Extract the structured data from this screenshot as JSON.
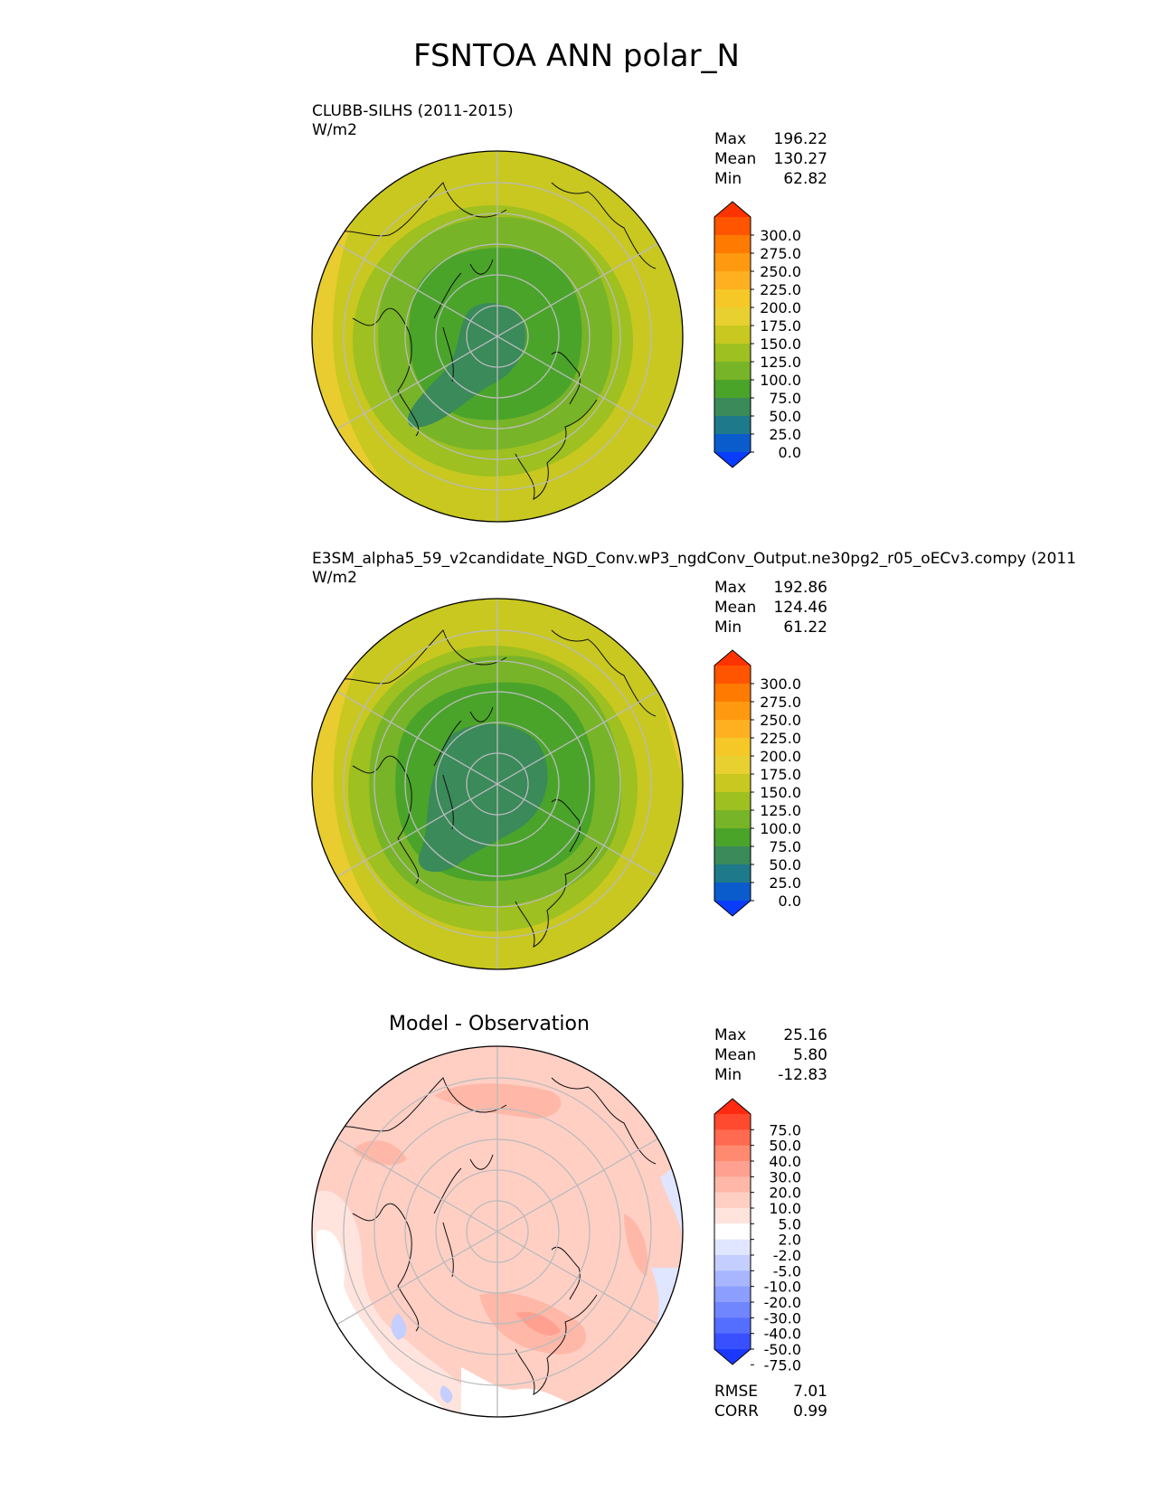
{
  "figure": {
    "title": "FSNTOA ANN polar_N"
  },
  "panels": [
    {
      "id": "test",
      "label": "CLUBB-SILHS (2011-2015)",
      "units": "W/m2",
      "stats": [
        {
          "label": "Max",
          "value": "196.22"
        },
        {
          "label": "Mean",
          "value": "130.27"
        },
        {
          "label": "Min",
          "value": "62.82"
        }
      ],
      "colorbar": {
        "ticks": [
          "300.0",
          "275.0",
          "250.0",
          "225.0",
          "200.0",
          "175.0",
          "150.0",
          "125.0",
          "100.0",
          "75.0",
          "50.0",
          "25.0",
          "0.0"
        ],
        "colors": [
          "#ff3300",
          "#ff5500",
          "#ff7a00",
          "#ff9a10",
          "#ffb020",
          "#f5c828",
          "#e8d030",
          "#c8c820",
          "#9ec020",
          "#78b428",
          "#4aa42a",
          "#3a8a5a",
          "#1e7a8a",
          "#0a5ccc",
          "#0a3cff"
        ]
      }
    },
    {
      "id": "ref",
      "label": "E3SM_alpha5_59_v2candidate_NGD_Conv.wP3_ngdConv_Output.ne30pg2_r05_oECv3.compy (2011",
      "units": "W/m2",
      "stats": [
        {
          "label": "Max",
          "value": "192.86"
        },
        {
          "label": "Mean",
          "value": "124.46"
        },
        {
          "label": "Min",
          "value": "61.22"
        }
      ],
      "colorbar": {
        "ticks": [
          "300.0",
          "275.0",
          "250.0",
          "225.0",
          "200.0",
          "175.0",
          "150.0",
          "125.0",
          "100.0",
          "75.0",
          "50.0",
          "25.0",
          "0.0"
        ],
        "colors": [
          "#ff3300",
          "#ff5500",
          "#ff7a00",
          "#ff9a10",
          "#ffb020",
          "#f5c828",
          "#e8d030",
          "#c8c820",
          "#9ec020",
          "#78b428",
          "#4aa42a",
          "#3a8a5a",
          "#1e7a8a",
          "#0a5ccc",
          "#0a3cff"
        ]
      }
    },
    {
      "id": "diff",
      "title": "Model - Observation",
      "stats": [
        {
          "label": "Max",
          "value": "25.16"
        },
        {
          "label": "Mean",
          "value": "5.80"
        },
        {
          "label": "Min",
          "value": "-12.83"
        }
      ],
      "metrics": [
        {
          "label": "RMSE",
          "value": "7.01"
        },
        {
          "label": "CORR",
          "value": "0.99"
        }
      ],
      "colorbar": {
        "ticks": [
          "75.0",
          "50.0",
          "40.0",
          "30.0",
          "20.0",
          "10.0",
          "5.0",
          "2.0",
          "-2.0",
          "-5.0",
          "-10.0",
          "-20.0",
          "-30.0",
          "-40.0",
          "-50.0",
          "-75.0"
        ],
        "colors": [
          "#ff2a10",
          "#ff4a30",
          "#ff6a50",
          "#ff8a70",
          "#ffa090",
          "#ffb8a8",
          "#ffcfc4",
          "#ffe4de",
          "#ffffff",
          "#e0e6ff",
          "#c4ceff",
          "#a8b6ff",
          "#8c9eff",
          "#7086ff",
          "#546eff",
          "#3850ff",
          "#1c38ff"
        ]
      }
    }
  ]
}
